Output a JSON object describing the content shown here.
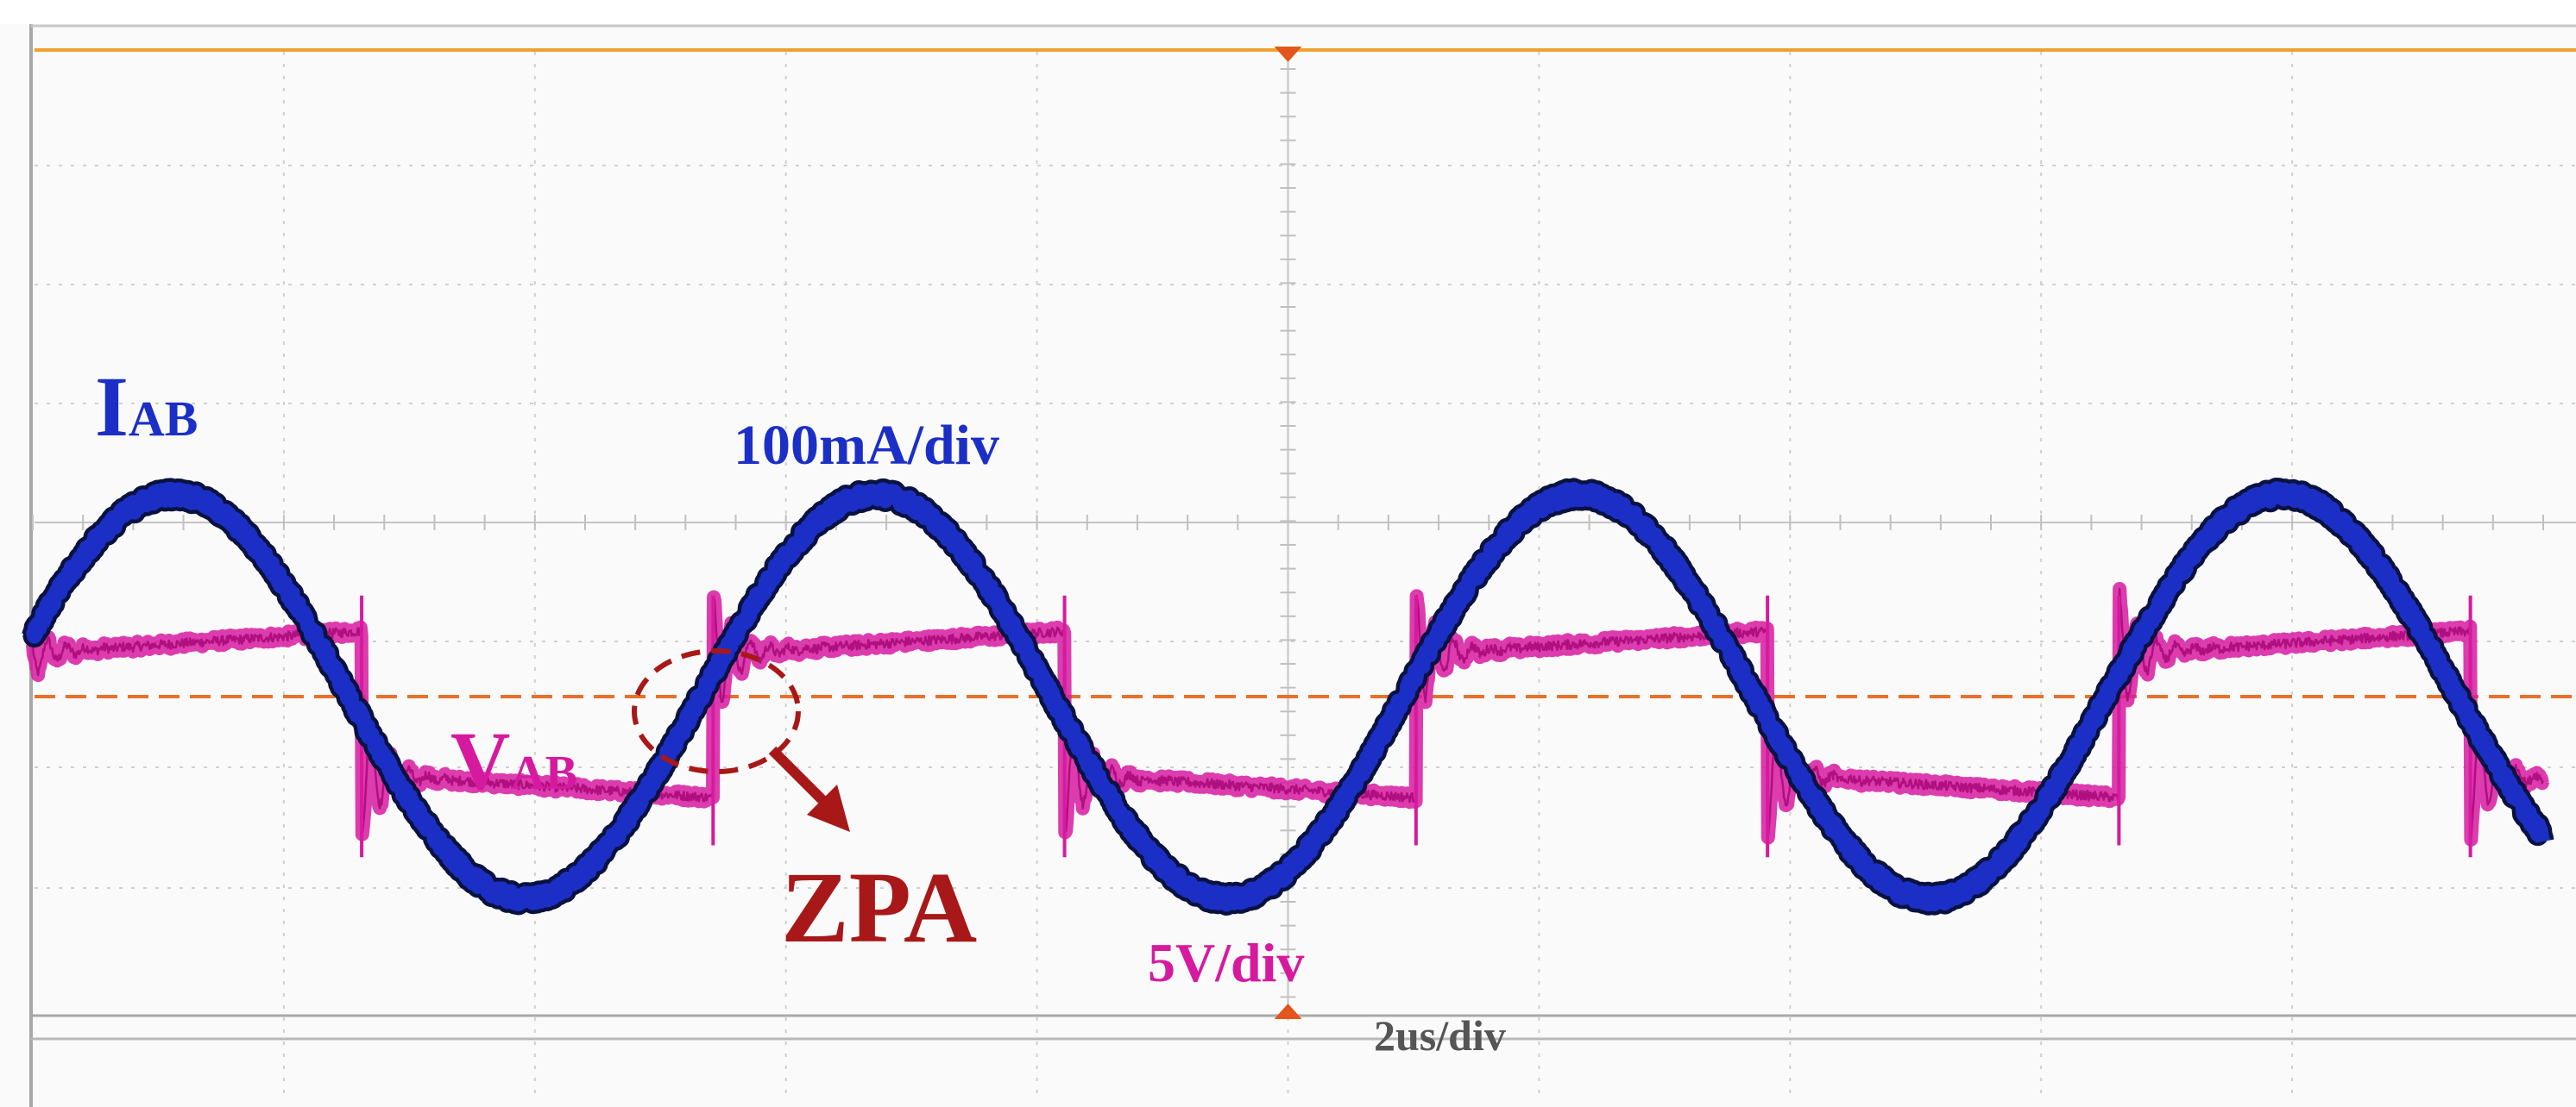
{
  "colors": {
    "current": "#1b2fc7",
    "current_edge": "#0a1240",
    "voltage": "#d61a9f",
    "annotation": "#a81818",
    "grid": "#cfcfcf",
    "trigger": "#f0a030",
    "ground_ref": "#e8702a",
    "time_label": "#555555"
  },
  "labels": {
    "current_main": "I",
    "current_sub": "AB",
    "voltage_main": "V",
    "voltage_sub": "AB",
    "current_scale": "100mA/div",
    "voltage_scale": "5V/div",
    "time_scale": "2us/div",
    "zpa": "ZPA"
  },
  "chart_data": {
    "type": "line",
    "title": "",
    "xlabel": "2us/div",
    "ylabel": "",
    "grid": true,
    "divisions": {
      "x": 10,
      "y": 8
    },
    "xlim_div": [
      0,
      10
    ],
    "ylim_div": [
      -4,
      4
    ],
    "series": [
      {
        "name": "IAB",
        "scale": "100mA/div",
        "shape": "sine",
        "period_div": 2.8,
        "amplitude_div": 1.7,
        "offset_div": 0.0,
        "phase_zero_div": -0.14,
        "noise_div": 0.05
      },
      {
        "name": "VAB",
        "scale": "5V/div",
        "shape": "square",
        "period_div": 2.8,
        "high_div": 0.55,
        "low_div": -0.85,
        "droop_div": 0.2,
        "first_rise_div": -0.09,
        "ringing_div": 0.5,
        "noise_div": 0.04
      }
    ],
    "annotations": [
      "ZPA"
    ]
  }
}
